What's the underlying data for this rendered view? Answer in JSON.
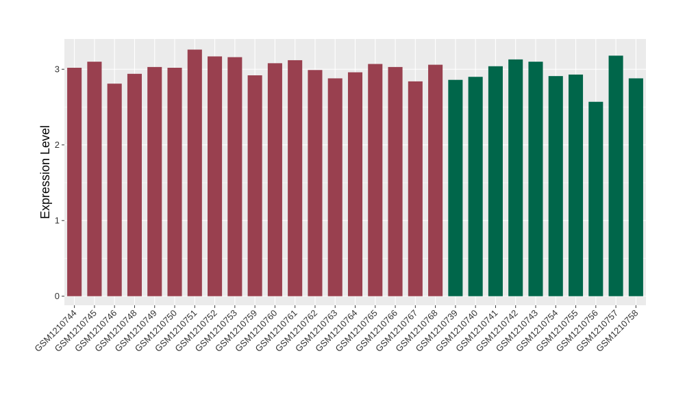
{
  "chart_data": {
    "type": "bar",
    "title": "",
    "xlabel": "",
    "ylabel": "Expression Level",
    "ylim": [
      -0.12,
      3.4
    ],
    "yticks": [
      0,
      1,
      2,
      3
    ],
    "grid": true,
    "legend": "none",
    "background": "#EBEBEB",
    "gridline_color": "#FFFFFF",
    "series_colors": {
      "group_a": "#99404F",
      "group_b": "#00664A"
    },
    "categories": [
      "GSM1210744",
      "GSM1210745",
      "GSM1210746",
      "GSM1210748",
      "GSM1210749",
      "GSM1210750",
      "GSM1210751",
      "GSM1210752",
      "GSM1210753",
      "GSM1210759",
      "GSM1210760",
      "GSM1210761",
      "GSM1210762",
      "GSM1210763",
      "GSM1210764",
      "GSM1210765",
      "GSM1210766",
      "GSM1210767",
      "GSM1210768",
      "GSM1210739",
      "GSM1210740",
      "GSM1210741",
      "GSM1210742",
      "GSM1210743",
      "GSM1210754",
      "GSM1210755",
      "GSM1210756",
      "GSM1210757",
      "GSM1210758"
    ],
    "values": [
      3.02,
      3.1,
      2.81,
      2.94,
      3.03,
      3.02,
      3.26,
      3.17,
      3.16,
      2.92,
      3.08,
      3.12,
      2.99,
      2.88,
      2.96,
      3.07,
      3.03,
      2.84,
      3.06,
      2.86,
      2.9,
      3.04,
      3.13,
      3.1,
      2.91,
      2.93,
      2.57,
      3.18,
      2.88
    ],
    "groups": [
      "group_a",
      "group_a",
      "group_a",
      "group_a",
      "group_a",
      "group_a",
      "group_a",
      "group_a",
      "group_a",
      "group_a",
      "group_a",
      "group_a",
      "group_a",
      "group_a",
      "group_a",
      "group_a",
      "group_a",
      "group_a",
      "group_a",
      "group_b",
      "group_b",
      "group_b",
      "group_b",
      "group_b",
      "group_b",
      "group_b",
      "group_b",
      "group_b",
      "group_b"
    ]
  }
}
